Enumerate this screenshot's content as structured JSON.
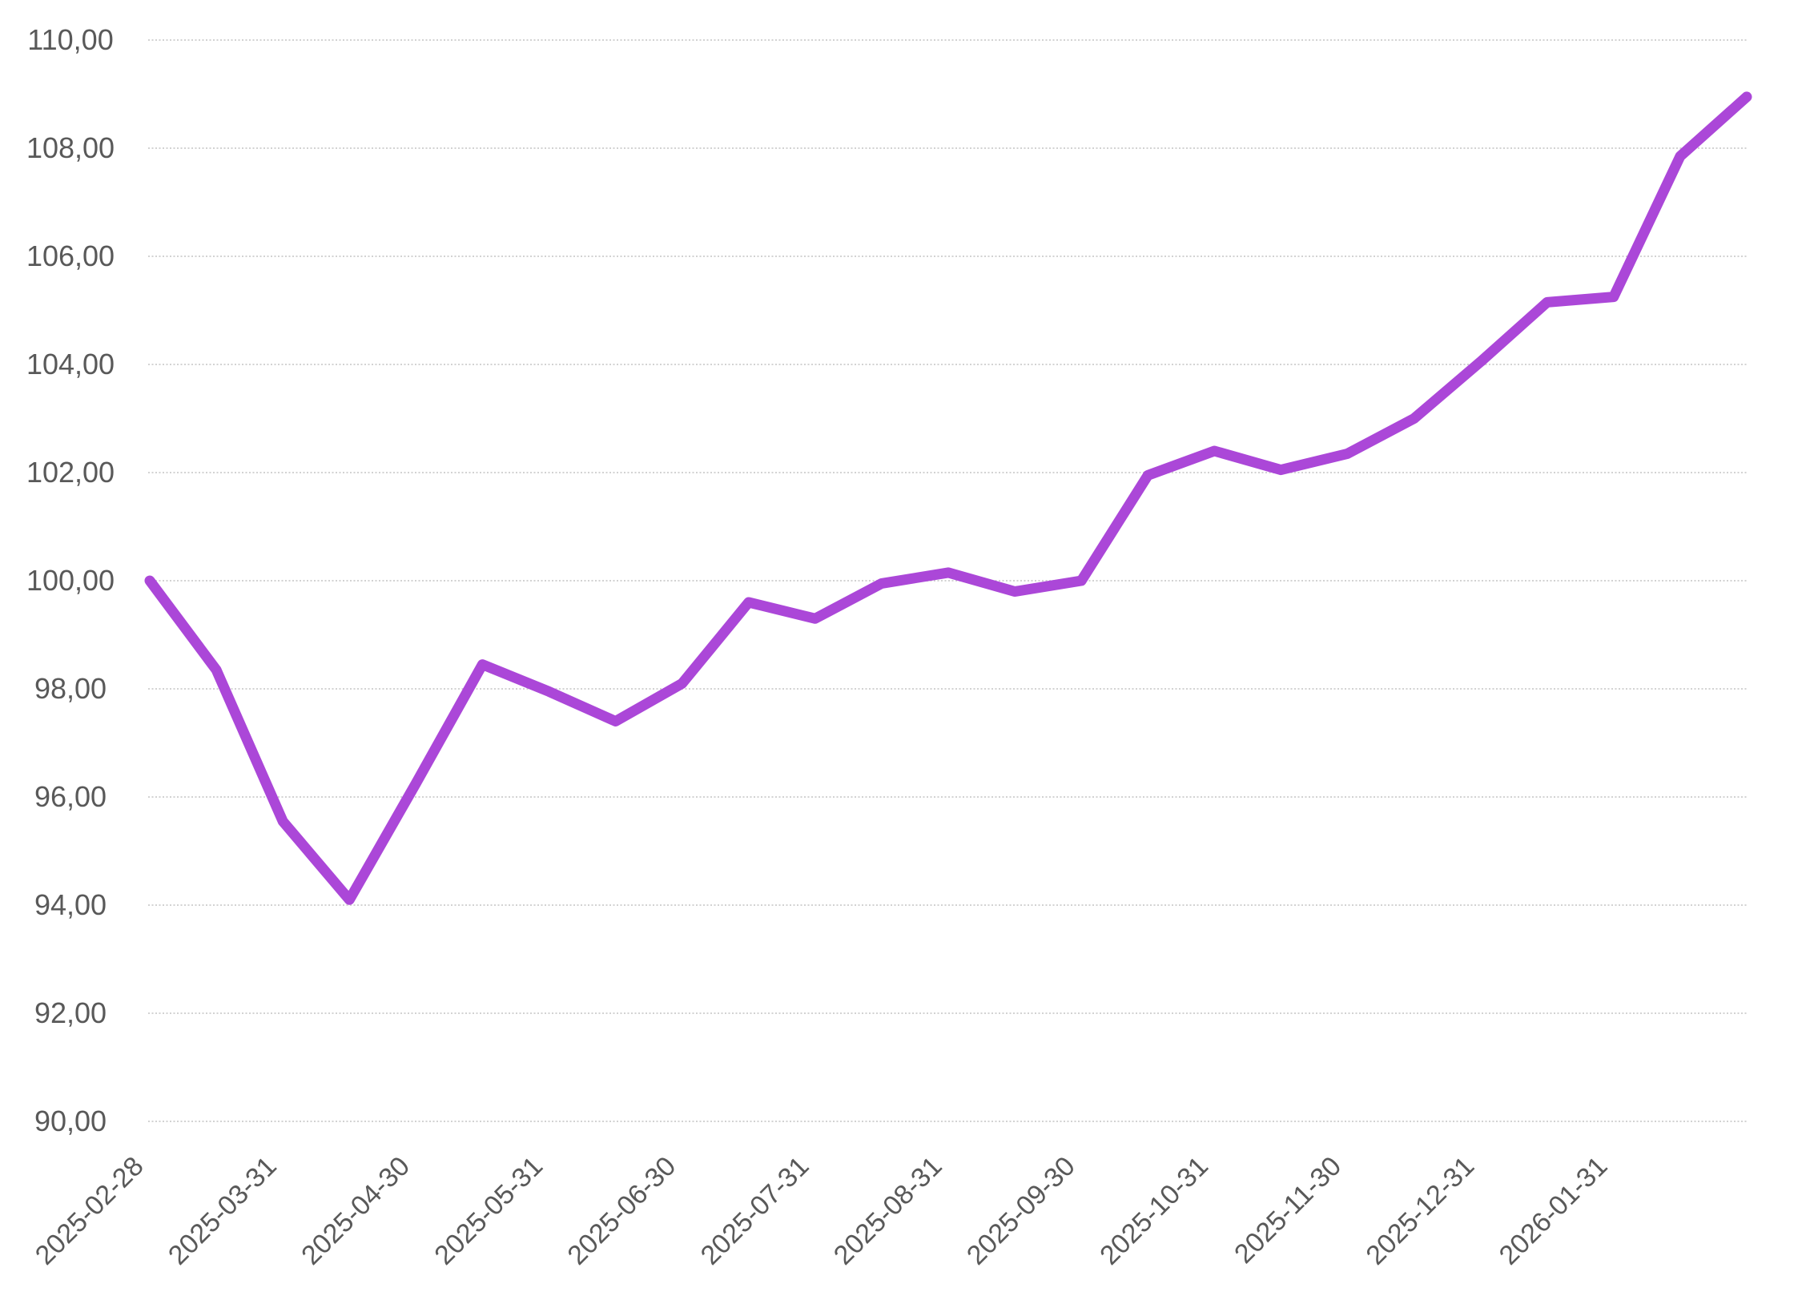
{
  "chart_data": {
    "type": "line",
    "title": "",
    "xlabel": "",
    "ylabel": "",
    "x_labels": [
      "2025-02-28",
      "2025-03-31",
      "2025-04-30",
      "2025-05-31",
      "2025-06-30",
      "2025-07-31",
      "2025-08-31",
      "2025-09-30",
      "2025-10-31",
      "2025-11-30",
      "2025-12-31",
      "2026-01-31"
    ],
    "x_label_every_n_points": 2,
    "values": [
      100.0,
      98.35,
      95.55,
      94.1,
      96.25,
      98.45,
      97.95,
      97.4,
      98.1,
      99.6,
      99.3,
      99.95,
      100.15,
      99.8,
      100.0,
      101.95,
      102.4,
      102.05,
      102.35,
      103.0,
      104.05,
      105.15,
      105.25,
      107.85,
      108.95
    ],
    "y_axis": {
      "min": 90,
      "max": 110,
      "step": 2,
      "tick_labels": [
        "90,00",
        "92,00",
        "94,00",
        "96,00",
        "98,00",
        "100,00",
        "102,00",
        "104,00",
        "106,00",
        "108,00",
        "110,00"
      ],
      "decimal_separator": ","
    },
    "ylim": [
      90,
      110
    ],
    "grid": true,
    "legend_position": "none",
    "colors": {
      "line": "#ab47d8",
      "gridline": "#d2d2d2",
      "tick_text": "#595959",
      "background": "#ffffff"
    }
  }
}
